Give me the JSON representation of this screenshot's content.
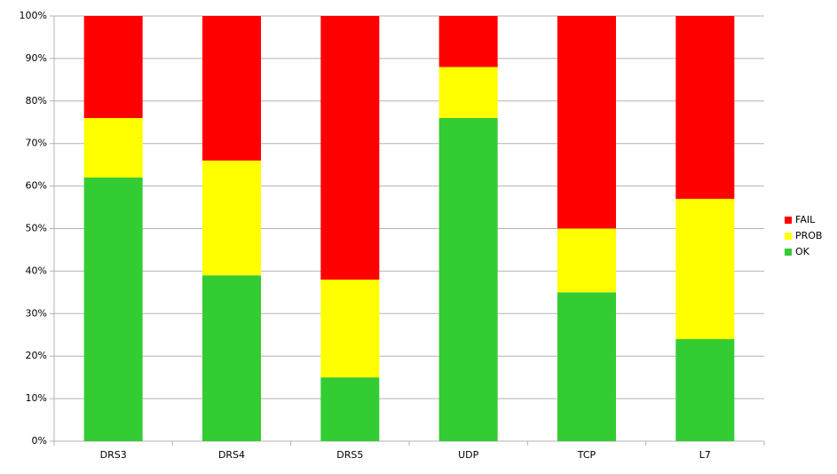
{
  "chart_data": {
    "type": "stacked-bar",
    "categories": [
      "DRS3",
      "DRS4",
      "DRS5",
      "UDP",
      "TCP",
      "L7"
    ],
    "series": [
      {
        "name": "OK",
        "color": "#33cc33",
        "values": [
          62,
          39,
          15,
          76,
          35,
          24
        ]
      },
      {
        "name": "PROB",
        "color": "#ffff00",
        "values": [
          14,
          27,
          23,
          12,
          15,
          33
        ]
      },
      {
        "name": "FAIL",
        "color": "#ff0000",
        "values": [
          24,
          34,
          62,
          12,
          50,
          43
        ]
      }
    ],
    "ylim": [
      0,
      100
    ],
    "yticks": [
      {
        "value": 0,
        "label": "0%"
      },
      {
        "value": 10,
        "label": "10%"
      },
      {
        "value": 20,
        "label": "20%"
      },
      {
        "value": 30,
        "label": "30%"
      },
      {
        "value": 40,
        "label": "40%"
      },
      {
        "value": 50,
        "label": "50%"
      },
      {
        "value": 60,
        "label": "60%"
      },
      {
        "value": 70,
        "label": "70%"
      },
      {
        "value": 80,
        "label": "80%"
      },
      {
        "value": 90,
        "label": "90%"
      },
      {
        "value": 100,
        "label": "100%"
      }
    ],
    "grid": true,
    "legend": "right"
  }
}
